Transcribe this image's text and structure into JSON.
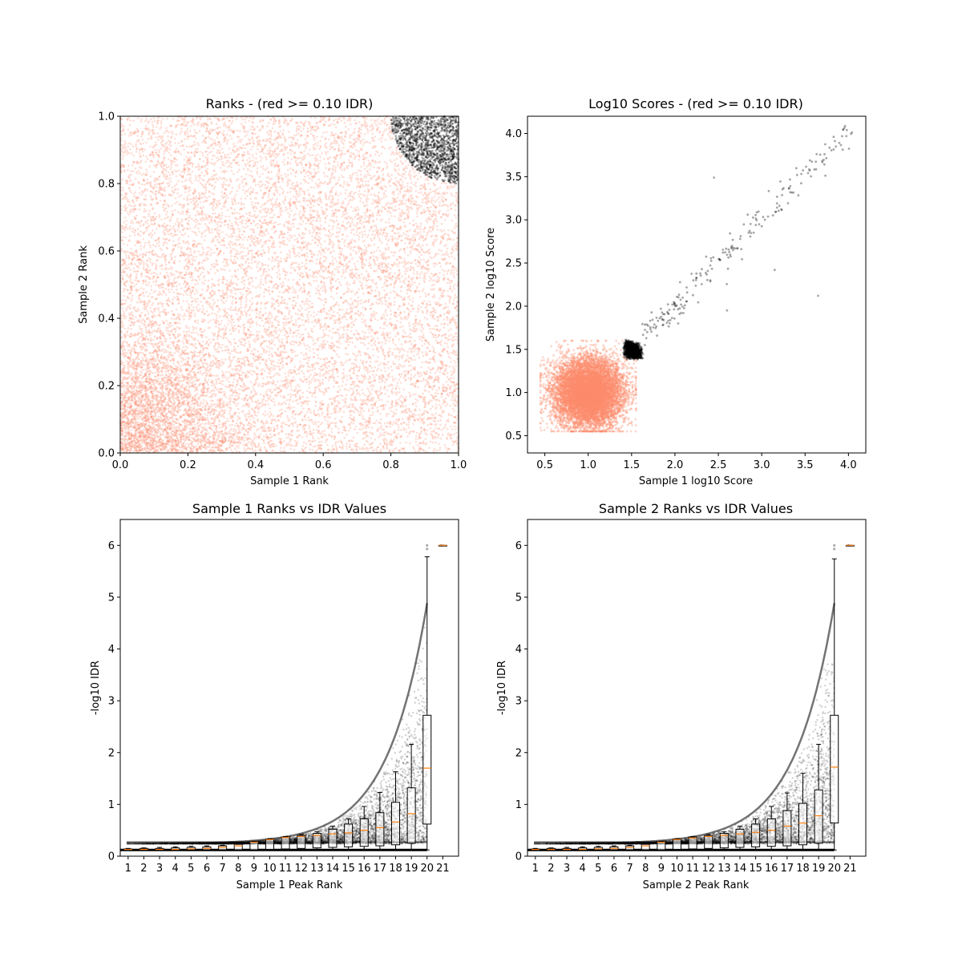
{
  "colors": {
    "red_points": "#fc8d6e",
    "black_points": "#000000",
    "median_line": "#ff7f0e",
    "box_edge": "#000000"
  },
  "chart_data": [
    {
      "id": "ranks",
      "type": "scatter",
      "title": "Ranks - (red >= 0.10 IDR)",
      "xlabel": "Sample 1 Rank",
      "ylabel": "Sample 2 Rank",
      "xlim": [
        0.0,
        1.0
      ],
      "ylim": [
        0.0,
        1.0
      ],
      "xticks": [
        "0.0",
        "0.2",
        "0.4",
        "0.6",
        "0.8",
        "1.0"
      ],
      "yticks": [
        "0.0",
        "0.2",
        "0.4",
        "0.6",
        "0.8",
        "1.0"
      ],
      "series": [
        {
          "color": "red",
          "description_region": "uniform over unit square except top-right corner",
          "count_estimate": 20000
        },
        {
          "color": "black",
          "description_region": "top-right corner (x>0.8, y>0.8)",
          "count_estimate": 1500
        }
      ]
    },
    {
      "id": "scores",
      "type": "scatter",
      "title": "Log10 Scores - (red >= 0.10 IDR)",
      "xlabel": "Sample 1 log10 Score",
      "ylabel": "Sample 2 log10 Score",
      "xlim": [
        0.3,
        4.2
      ],
      "ylim": [
        0.3,
        4.2
      ],
      "xticks": [
        "0.5",
        "1.0",
        "1.5",
        "2.0",
        "2.5",
        "3.0",
        "3.5",
        "4.0"
      ],
      "yticks": [
        "0.5",
        "1.0",
        "1.5",
        "2.0",
        "2.5",
        "3.0",
        "3.5",
        "4.0"
      ],
      "series": [
        {
          "color": "red",
          "description_region": "dense cloud x 0.45-1.5, y 0.55-1.6"
        },
        {
          "color": "black",
          "description_region": "cluster near (1.5, 1.5) with diagonal tail to (4.0, 4.0)"
        }
      ]
    },
    {
      "id": "s1_idr",
      "type": "box",
      "title": "Sample 1 Ranks vs IDR Values",
      "xlabel": "Sample 1 Peak Rank",
      "ylabel": "-log10 IDR",
      "ylim": [
        0,
        6.5
      ],
      "xticks": [
        "1",
        "2",
        "3",
        "4",
        "5",
        "6",
        "7",
        "8",
        "9",
        "10",
        "11",
        "12",
        "13",
        "14",
        "15",
        "16",
        "17",
        "18",
        "19",
        "20",
        "21"
      ],
      "yticks": [
        "0",
        "1",
        "2",
        "3",
        "4",
        "5",
        "6"
      ],
      "boxes": [
        {
          "q1": 0.12,
          "median": 0.13,
          "q3": 0.14,
          "wlo": 0.11,
          "whi": 0.15
        },
        {
          "q1": 0.12,
          "median": 0.13,
          "q3": 0.15,
          "wlo": 0.11,
          "whi": 0.16
        },
        {
          "q1": 0.12,
          "median": 0.13,
          "q3": 0.15,
          "wlo": 0.11,
          "whi": 0.17
        },
        {
          "q1": 0.12,
          "median": 0.13,
          "q3": 0.16,
          "wlo": 0.11,
          "whi": 0.18
        },
        {
          "q1": 0.12,
          "median": 0.14,
          "q3": 0.17,
          "wlo": 0.11,
          "whi": 0.19
        },
        {
          "q1": 0.12,
          "median": 0.15,
          "q3": 0.18,
          "wlo": 0.11,
          "whi": 0.2
        },
        {
          "q1": 0.12,
          "median": 0.17,
          "q3": 0.2,
          "wlo": 0.11,
          "whi": 0.21
        },
        {
          "q1": 0.12,
          "median": 0.2,
          "q3": 0.23,
          "wlo": 0.11,
          "whi": 0.23
        },
        {
          "q1": 0.12,
          "median": 0.27,
          "q3": 0.28,
          "wlo": 0.11,
          "whi": 0.29
        },
        {
          "q1": 0.13,
          "median": 0.32,
          "q3": 0.33,
          "wlo": 0.11,
          "whi": 0.34
        },
        {
          "q1": 0.14,
          "median": 0.36,
          "q3": 0.37,
          "wlo": 0.11,
          "whi": 0.38
        },
        {
          "q1": 0.15,
          "median": 0.38,
          "q3": 0.4,
          "wlo": 0.11,
          "whi": 0.42
        },
        {
          "q1": 0.16,
          "median": 0.4,
          "q3": 0.44,
          "wlo": 0.11,
          "whi": 0.47
        },
        {
          "q1": 0.17,
          "median": 0.43,
          "q3": 0.52,
          "wlo": 0.12,
          "whi": 0.58
        },
        {
          "q1": 0.18,
          "median": 0.45,
          "q3": 0.62,
          "wlo": 0.12,
          "whi": 0.72
        },
        {
          "q1": 0.19,
          "median": 0.5,
          "q3": 0.72,
          "wlo": 0.12,
          "whi": 0.96
        },
        {
          "q1": 0.2,
          "median": 0.55,
          "q3": 0.84,
          "wlo": 0.12,
          "whi": 1.23
        },
        {
          "q1": 0.22,
          "median": 0.66,
          "q3": 1.04,
          "wlo": 0.12,
          "whi": 1.63
        },
        {
          "q1": 0.25,
          "median": 0.82,
          "q3": 1.32,
          "wlo": 0.12,
          "whi": 2.16
        },
        {
          "q1": 0.62,
          "median": 1.7,
          "q3": 2.72,
          "wlo": 0.12,
          "whi": 5.78
        },
        {
          "q1": 6.0,
          "median": 6.0,
          "q3": 6.0,
          "wlo": 6.0,
          "whi": 6.0
        }
      ]
    },
    {
      "id": "s2_idr",
      "type": "box",
      "title": "Sample 2 Ranks vs IDR Values",
      "xlabel": "Sample 2 Peak Rank",
      "ylabel": "-log10 IDR",
      "ylim": [
        0,
        6.5
      ],
      "xticks": [
        "1",
        "2",
        "3",
        "4",
        "5",
        "6",
        "7",
        "8",
        "9",
        "10",
        "11",
        "12",
        "13",
        "14",
        "15",
        "16",
        "17",
        "18",
        "19",
        "20",
        "21"
      ],
      "yticks": [
        "0",
        "1",
        "2",
        "3",
        "4",
        "5",
        "6"
      ],
      "boxes": [
        {
          "q1": 0.12,
          "median": 0.13,
          "q3": 0.14,
          "wlo": 0.11,
          "whi": 0.15
        },
        {
          "q1": 0.12,
          "median": 0.13,
          "q3": 0.15,
          "wlo": 0.11,
          "whi": 0.16
        },
        {
          "q1": 0.12,
          "median": 0.13,
          "q3": 0.15,
          "wlo": 0.11,
          "whi": 0.17
        },
        {
          "q1": 0.12,
          "median": 0.13,
          "q3": 0.16,
          "wlo": 0.11,
          "whi": 0.18
        },
        {
          "q1": 0.12,
          "median": 0.14,
          "q3": 0.17,
          "wlo": 0.11,
          "whi": 0.19
        },
        {
          "q1": 0.12,
          "median": 0.15,
          "q3": 0.18,
          "wlo": 0.11,
          "whi": 0.2
        },
        {
          "q1": 0.12,
          "median": 0.17,
          "q3": 0.2,
          "wlo": 0.11,
          "whi": 0.21
        },
        {
          "q1": 0.12,
          "median": 0.2,
          "q3": 0.23,
          "wlo": 0.11,
          "whi": 0.23
        },
        {
          "q1": 0.12,
          "median": 0.27,
          "q3": 0.28,
          "wlo": 0.11,
          "whi": 0.29
        },
        {
          "q1": 0.13,
          "median": 0.32,
          "q3": 0.33,
          "wlo": 0.11,
          "whi": 0.34
        },
        {
          "q1": 0.14,
          "median": 0.35,
          "q3": 0.37,
          "wlo": 0.11,
          "whi": 0.38
        },
        {
          "q1": 0.15,
          "median": 0.38,
          "q3": 0.4,
          "wlo": 0.11,
          "whi": 0.42
        },
        {
          "q1": 0.16,
          "median": 0.4,
          "q3": 0.44,
          "wlo": 0.11,
          "whi": 0.47
        },
        {
          "q1": 0.17,
          "median": 0.43,
          "q3": 0.52,
          "wlo": 0.12,
          "whi": 0.58
        },
        {
          "q1": 0.18,
          "median": 0.46,
          "q3": 0.62,
          "wlo": 0.12,
          "whi": 0.72
        },
        {
          "q1": 0.19,
          "median": 0.5,
          "q3": 0.72,
          "wlo": 0.12,
          "whi": 0.96
        },
        {
          "q1": 0.2,
          "median": 0.58,
          "q3": 0.88,
          "wlo": 0.12,
          "whi": 1.22
        },
        {
          "q1": 0.22,
          "median": 0.64,
          "q3": 1.02,
          "wlo": 0.12,
          "whi": 1.6
        },
        {
          "q1": 0.25,
          "median": 0.78,
          "q3": 1.28,
          "wlo": 0.12,
          "whi": 2.16
        },
        {
          "q1": 0.64,
          "median": 1.72,
          "q3": 2.72,
          "wlo": 0.12,
          "whi": 5.74
        },
        {
          "q1": 6.0,
          "median": 6.0,
          "q3": 6.0,
          "wlo": 6.0,
          "whi": 6.0
        }
      ]
    }
  ]
}
